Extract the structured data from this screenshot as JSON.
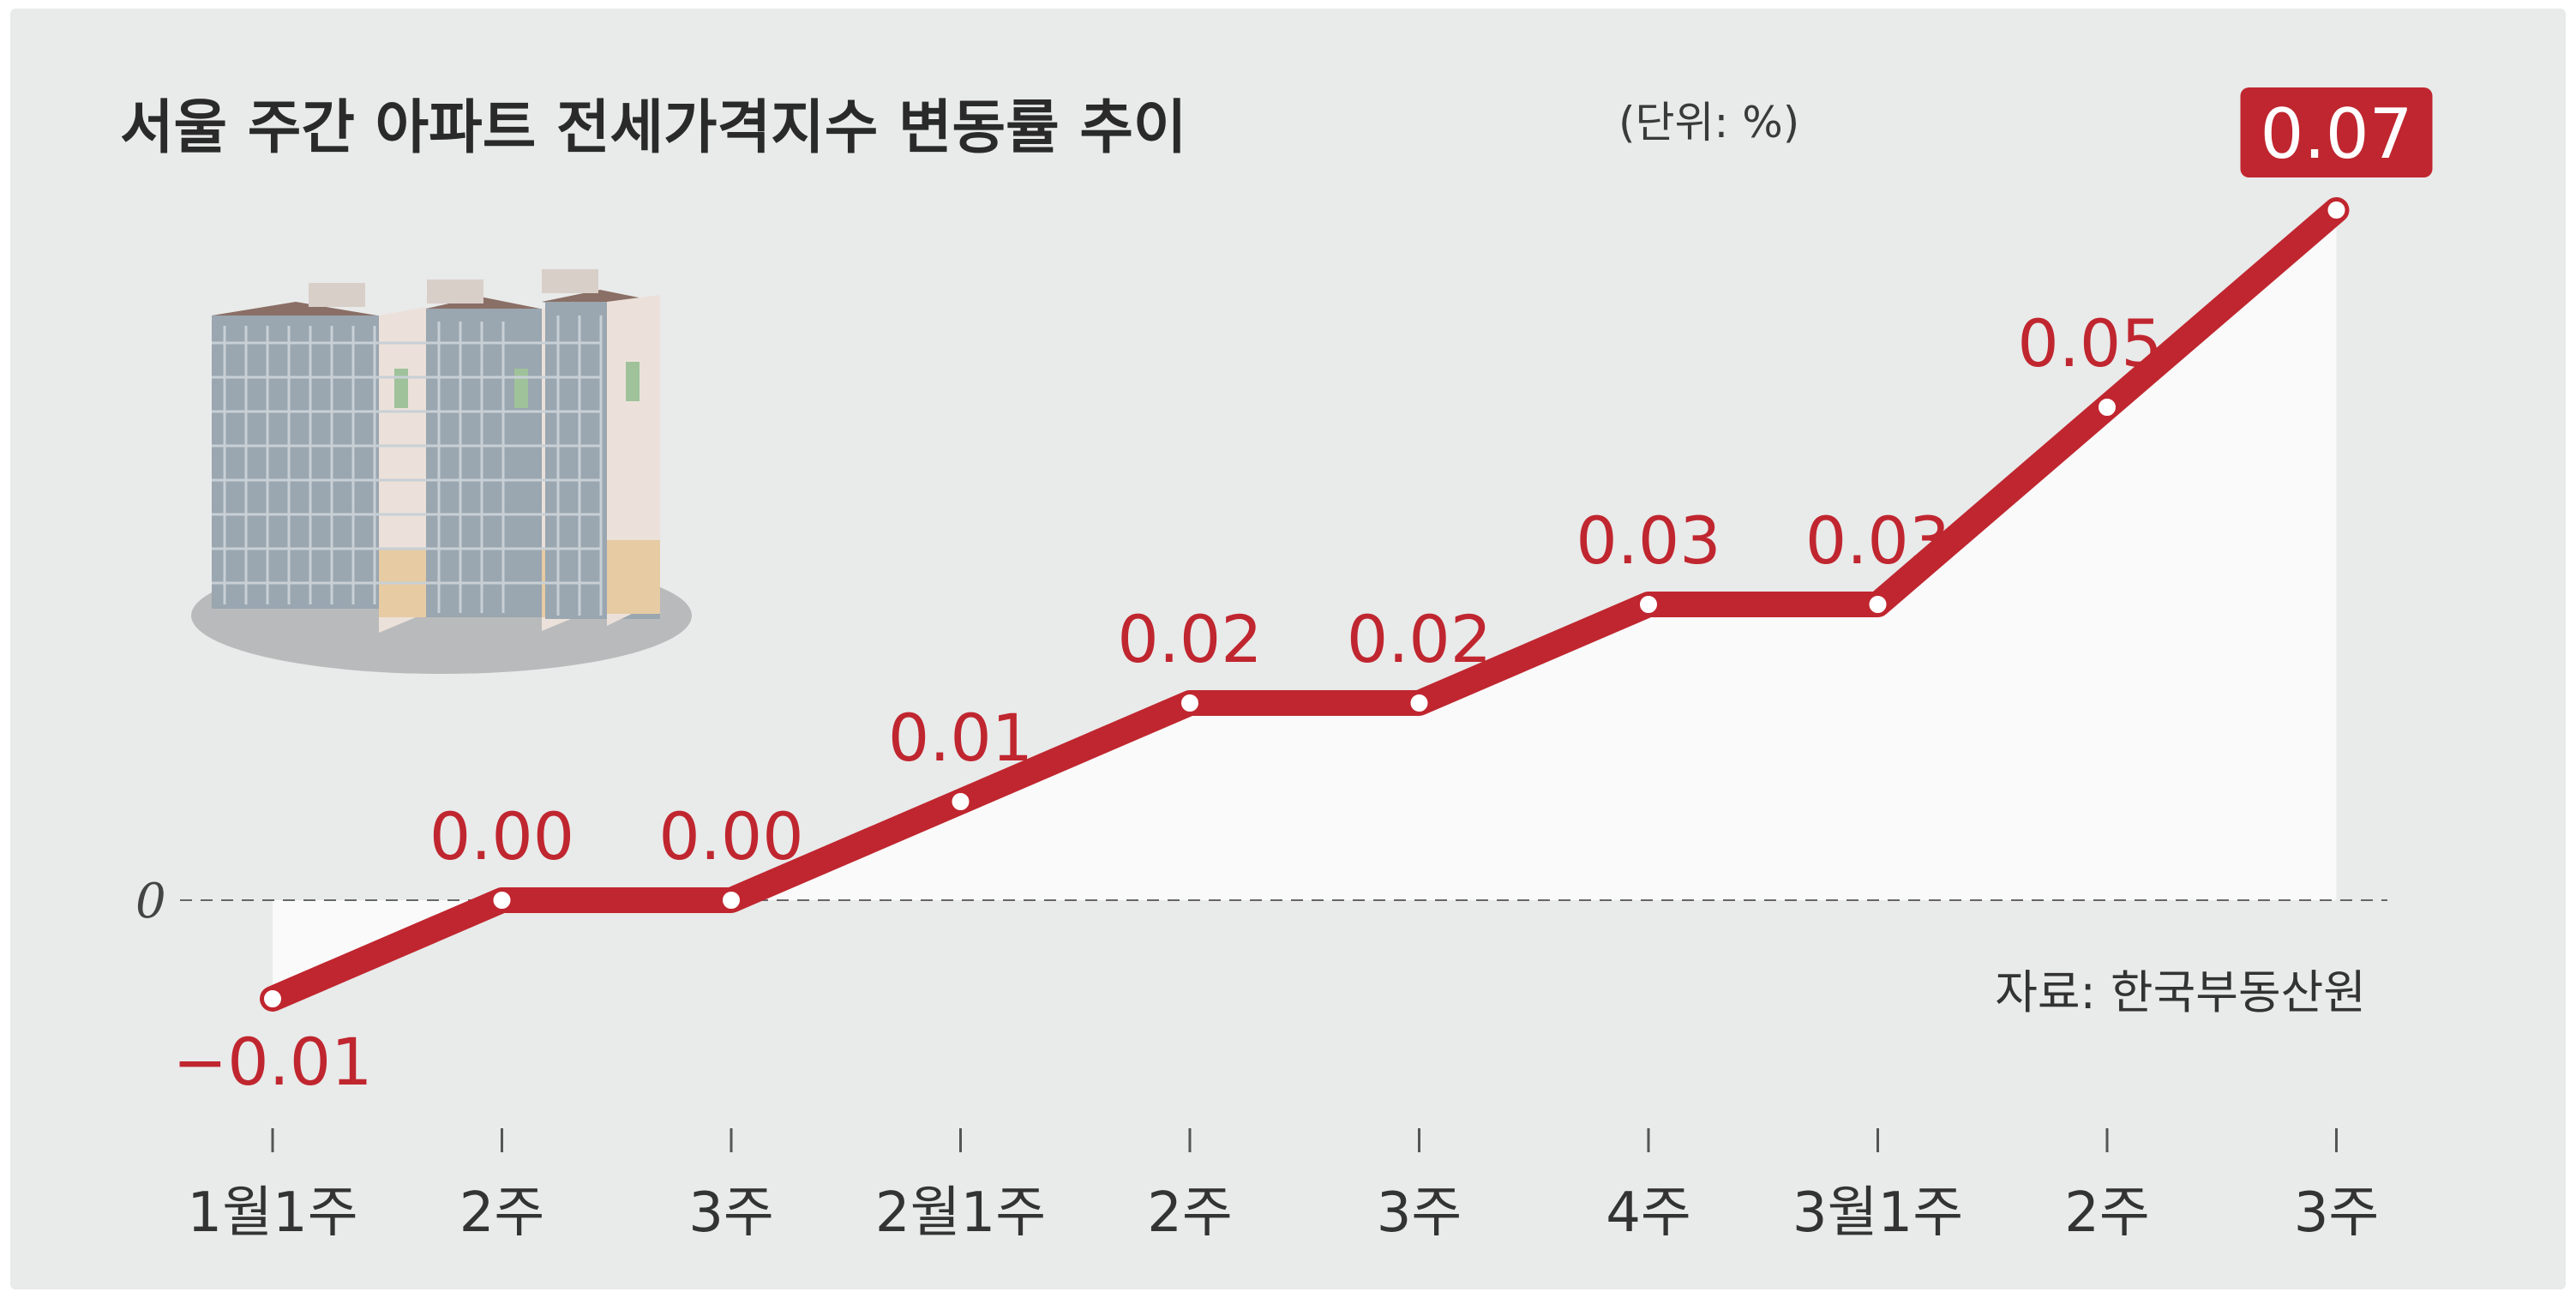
{
  "title": "서울 주간 아파트 전세가격지수 변동률 추이",
  "unit": "(단위: %)",
  "source": "자료: 한국부동산원",
  "zero_label": "0",
  "colors": {
    "background": "#e9eaea",
    "line": "#c0262f",
    "area": "#fafafa",
    "label": "#c0262f"
  },
  "chart_data": {
    "type": "line",
    "title": "서울 주간 아파트 전세가격지수 변동률 추이",
    "ylabel": "",
    "xlabel": "",
    "unit": "%",
    "categories": [
      "1월1주",
      "2주",
      "3주",
      "2월1주",
      "2주",
      "3주",
      "4주",
      "3월1주",
      "2주",
      "3주"
    ],
    "values": [
      -0.01,
      0.0,
      0.0,
      0.01,
      0.02,
      0.02,
      0.03,
      0.03,
      0.05,
      0.07
    ],
    "labels": [
      "−0.01",
      "0.00",
      "0.00",
      "0.01",
      "0.02",
      "0.02",
      "0.03",
      "0.03",
      "0.05",
      "0.07"
    ],
    "ylim": [
      -0.01,
      0.07
    ],
    "baseline": 0,
    "grid": false,
    "legend": "none",
    "highlight_last": true
  }
}
